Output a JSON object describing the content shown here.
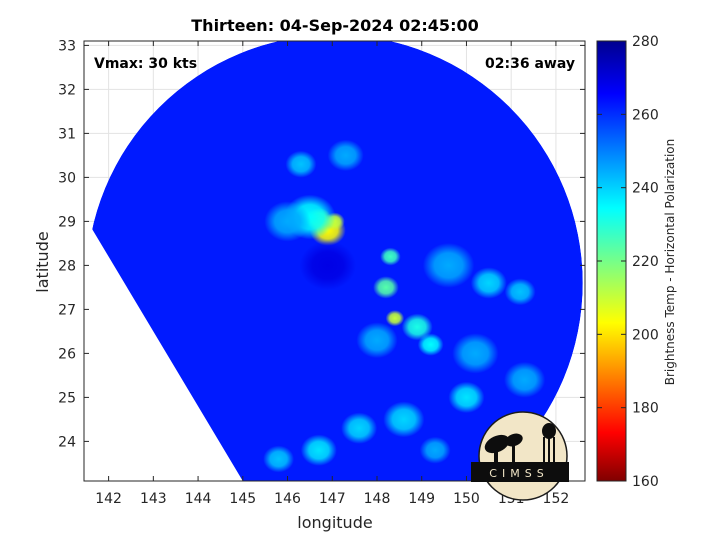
{
  "chart_data": {
    "type": "heatmap",
    "title": "Thirteen: 04-Sep-2024 02:45:00",
    "xlabel": "longitude",
    "ylabel": "latitude",
    "xlim": [
      141.45,
      152.65
    ],
    "ylim": [
      23.1,
      33.1
    ],
    "xticks": [
      142,
      143,
      144,
      145,
      146,
      147,
      148,
      149,
      150,
      151,
      152
    ],
    "yticks": [
      24,
      25,
      26,
      27,
      28,
      29,
      30,
      31,
      32,
      33
    ],
    "grid": true,
    "annotations": {
      "vmax": "Vmax: 30 kts",
      "time_away": "02:36 away"
    },
    "colorbar": {
      "label": "Brightness Temp - Horizontal Polarization",
      "range": [
        160,
        280
      ],
      "ticks": [
        160,
        180,
        200,
        220,
        240,
        260,
        280
      ],
      "colormap": "jet"
    },
    "swath": {
      "center": [
        147.05,
        27.6
      ],
      "radius_deg": 5.55
    },
    "background_tb": 262,
    "features": [
      {
        "lon": 146.9,
        "lat": 28.8,
        "tb": 205,
        "radius": 0.35
      },
      {
        "lon": 146.7,
        "lat": 29.05,
        "tb": 210,
        "radius": 0.25
      },
      {
        "lon": 147.05,
        "lat": 29.0,
        "tb": 212,
        "radius": 0.2
      },
      {
        "lon": 146.5,
        "lat": 29.1,
        "tb": 235,
        "radius": 0.5
      },
      {
        "lon": 146.0,
        "lat": 29.0,
        "tb": 245,
        "radius": 0.45
      },
      {
        "lon": 146.3,
        "lat": 30.3,
        "tb": 242,
        "radius": 0.3
      },
      {
        "lon": 147.3,
        "lat": 30.5,
        "tb": 245,
        "radius": 0.35
      },
      {
        "lon": 148.3,
        "lat": 28.2,
        "tb": 228,
        "radius": 0.2
      },
      {
        "lon": 148.2,
        "lat": 27.5,
        "tb": 225,
        "radius": 0.25
      },
      {
        "lon": 148.4,
        "lat": 26.8,
        "tb": 212,
        "radius": 0.18
      },
      {
        "lon": 148.9,
        "lat": 26.6,
        "tb": 232,
        "radius": 0.3
      },
      {
        "lon": 149.2,
        "lat": 26.2,
        "tb": 235,
        "radius": 0.25
      },
      {
        "lon": 148.0,
        "lat": 26.3,
        "tb": 245,
        "radius": 0.4
      },
      {
        "lon": 149.6,
        "lat": 28.0,
        "tb": 245,
        "radius": 0.5
      },
      {
        "lon": 150.5,
        "lat": 27.6,
        "tb": 240,
        "radius": 0.35
      },
      {
        "lon": 151.2,
        "lat": 27.4,
        "tb": 242,
        "radius": 0.3
      },
      {
        "lon": 150.2,
        "lat": 26.0,
        "tb": 245,
        "radius": 0.45
      },
      {
        "lon": 151.3,
        "lat": 25.4,
        "tb": 245,
        "radius": 0.4
      },
      {
        "lon": 150.0,
        "lat": 25.0,
        "tb": 238,
        "radius": 0.35
      },
      {
        "lon": 148.6,
        "lat": 24.5,
        "tb": 240,
        "radius": 0.4
      },
      {
        "lon": 147.6,
        "lat": 24.3,
        "tb": 240,
        "radius": 0.35
      },
      {
        "lon": 146.7,
        "lat": 23.8,
        "tb": 238,
        "radius": 0.35
      },
      {
        "lon": 145.8,
        "lat": 23.6,
        "tb": 242,
        "radius": 0.3
      },
      {
        "lon": 149.3,
        "lat": 23.8,
        "tb": 245,
        "radius": 0.3
      },
      {
        "lon": 146.9,
        "lat": 28.0,
        "tb": 268,
        "radius": 0.55
      }
    ]
  },
  "logo": {
    "text": "CIMSS"
  }
}
